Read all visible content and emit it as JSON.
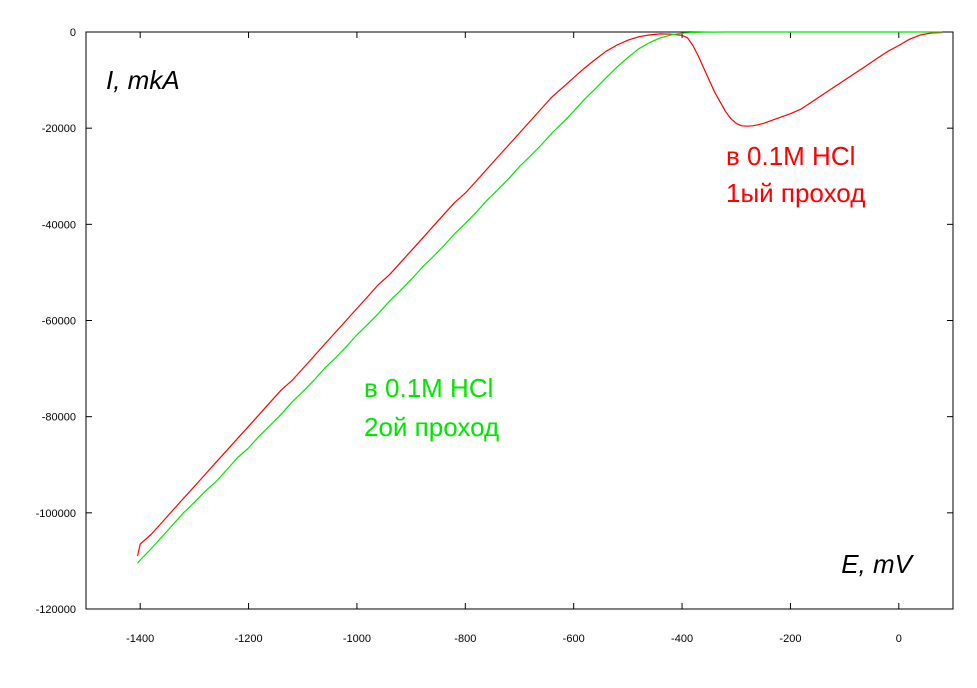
{
  "chart_data": {
    "type": "line",
    "title": "",
    "xlabel": "E, mV",
    "ylabel": "I, mkA",
    "xlim": [
      -1500,
      100
    ],
    "ylim": [
      -120000,
      0
    ],
    "x_ticks": [
      -1400,
      -1200,
      -1000,
      -800,
      -600,
      -400,
      -200,
      0
    ],
    "y_ticks": [
      0,
      -20000,
      -40000,
      -60000,
      -80000,
      -100000,
      -120000
    ],
    "grid": false,
    "legend": "none",
    "series": [
      {
        "color": "#ff0000",
        "x": [
          -1405,
          -1400,
          -1380,
          -1360,
          -1340,
          -1320,
          -1300,
          -1280,
          -1260,
          -1240,
          -1220,
          -1200,
          -1180,
          -1160,
          -1140,
          -1120,
          -1100,
          -1080,
          -1060,
          -1040,
          -1020,
          -1000,
          -980,
          -960,
          -940,
          -920,
          -900,
          -880,
          -860,
          -840,
          -820,
          -800,
          -780,
          -760,
          -740,
          -720,
          -700,
          -680,
          -660,
          -640,
          -620,
          -600,
          -580,
          -560,
          -540,
          -520,
          -500,
          -480,
          -460,
          -440,
          -420,
          -400,
          -390,
          -380,
          -370,
          -360,
          -350,
          -340,
          -330,
          -320,
          -310,
          -300,
          -290,
          -280,
          -270,
          -260,
          -250,
          -240,
          -220,
          -200,
          -180,
          -160,
          -140,
          -120,
          -100,
          -80,
          -60,
          -40,
          -20,
          0,
          20,
          40,
          60,
          80
        ],
        "y": [
          -109000,
          -106500,
          -104500,
          -102000,
          -99500,
          -97000,
          -94500,
          -92000,
          -89500,
          -87000,
          -84500,
          -82000,
          -79500,
          -77000,
          -74500,
          -72500,
          -70000,
          -67500,
          -65000,
          -62500,
          -60000,
          -57500,
          -55000,
          -52500,
          -50500,
          -48000,
          -45500,
          -43000,
          -40500,
          -38000,
          -35500,
          -33500,
          -31000,
          -28500,
          -26000,
          -23500,
          -21000,
          -18500,
          -16000,
          -13500,
          -11500,
          -9500,
          -7500,
          -5700,
          -4000,
          -2700,
          -1700,
          -1000,
          -600,
          -400,
          -450,
          -700,
          -1200,
          -2800,
          -5000,
          -7500,
          -10000,
          -12500,
          -14500,
          -16500,
          -18000,
          -19000,
          -19500,
          -19600,
          -19500,
          -19300,
          -19000,
          -18600,
          -17800,
          -17000,
          -16000,
          -14500,
          -13000,
          -11500,
          -10000,
          -8500,
          -7000,
          -5500,
          -4000,
          -2800,
          -1500,
          -600,
          -200,
          -100
        ]
      },
      {
        "color": "#00e600",
        "x": [
          -1405,
          -1400,
          -1380,
          -1360,
          -1340,
          -1320,
          -1300,
          -1280,
          -1260,
          -1240,
          -1220,
          -1200,
          -1180,
          -1160,
          -1140,
          -1120,
          -1100,
          -1080,
          -1060,
          -1040,
          -1020,
          -1000,
          -980,
          -960,
          -940,
          -920,
          -900,
          -880,
          -860,
          -840,
          -820,
          -800,
          -780,
          -760,
          -740,
          -720,
          -700,
          -680,
          -660,
          -640,
          -620,
          -600,
          -580,
          -560,
          -540,
          -520,
          -500,
          -480,
          -460,
          -440,
          -420,
          -400,
          -380,
          -360,
          -340,
          -320,
          -300,
          -250,
          -200,
          -150,
          -100,
          -50,
          0,
          50,
          80
        ],
        "y": [
          -110500,
          -109800,
          -107500,
          -105000,
          -102500,
          -100000,
          -97800,
          -95500,
          -93500,
          -91000,
          -88500,
          -86500,
          -84000,
          -81800,
          -79500,
          -77000,
          -74800,
          -72500,
          -70000,
          -67800,
          -65500,
          -63000,
          -60800,
          -58500,
          -56000,
          -53800,
          -51500,
          -49000,
          -46800,
          -44500,
          -42000,
          -39800,
          -37500,
          -35000,
          -32800,
          -30500,
          -28000,
          -25800,
          -23500,
          -21000,
          -18800,
          -16500,
          -14000,
          -11800,
          -9500,
          -7300,
          -5300,
          -3500,
          -2200,
          -1200,
          -600,
          -250,
          -100,
          -50,
          -20,
          -10,
          0,
          0,
          0,
          0,
          0,
          0,
          0,
          0,
          0
        ]
      }
    ],
    "annotations": [
      {
        "lines": [
          "в 0.1M HCl",
          "1ый проход"
        ],
        "color": "#ff0000"
      },
      {
        "lines": [
          "в 0.1M HCl",
          "2ой проход"
        ],
        "color": "#00e600"
      }
    ]
  }
}
